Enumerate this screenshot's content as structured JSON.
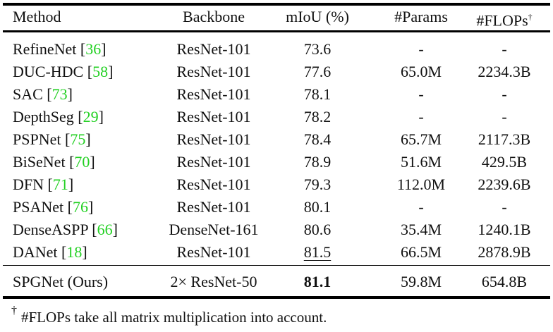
{
  "table": {
    "headers": {
      "method": "Method",
      "backbone": "Backbone",
      "miou": "mIoU (%)",
      "params": "#Params",
      "flops": "#FLOPs",
      "flops_mark": "†"
    },
    "rows": [
      {
        "method": "RefineNet",
        "ref": "36",
        "backbone": "ResNet-101",
        "miou": "73.6",
        "params": "-",
        "flops": "-"
      },
      {
        "method": "DUC-HDC",
        "ref": "58",
        "backbone": "ResNet-101",
        "miou": "77.6",
        "params": "65.0M",
        "flops": "2234.3B"
      },
      {
        "method": "SAC",
        "ref": "73",
        "backbone": "ResNet-101",
        "miou": "78.1",
        "params": "-",
        "flops": "-"
      },
      {
        "method": "DepthSeg",
        "ref": "29",
        "backbone": "ResNet-101",
        "miou": "78.2",
        "params": "-",
        "flops": "-"
      },
      {
        "method": "PSPNet",
        "ref": "75",
        "backbone": "ResNet-101",
        "miou": "78.4",
        "params": "65.7M",
        "flops": "2117.3B"
      },
      {
        "method": "BiSeNet",
        "ref": "70",
        "backbone": "ResNet-101",
        "miou": "78.9",
        "params": "51.6M",
        "flops": "429.5B"
      },
      {
        "method": "DFN",
        "ref": "71",
        "backbone": "ResNet-101",
        "miou": "79.3",
        "params": "112.0M",
        "flops": "2239.6B"
      },
      {
        "method": "PSANet",
        "ref": "76",
        "backbone": "ResNet-101",
        "miou": "80.1",
        "params": "-",
        "flops": "-"
      },
      {
        "method": "DenseASPP",
        "ref": "66",
        "backbone": "DenseNet-161",
        "miou": "80.6",
        "params": "35.4M",
        "flops": "1240.1B"
      },
      {
        "method": "DANet",
        "ref": "18",
        "backbone": "ResNet-101",
        "miou": "81.5",
        "params": "66.5M",
        "flops": "2878.9B",
        "underline": true
      }
    ],
    "ours": {
      "method": "SPGNet (Ours)",
      "backbone": "2× ResNet-50",
      "miou": "81.1",
      "params": "59.8M",
      "flops": "654.8B"
    }
  },
  "footnote": {
    "mark": "†",
    "text": "#FLOPs take all matrix multiplication into account."
  },
  "colors": {
    "citation": "#22d022"
  }
}
